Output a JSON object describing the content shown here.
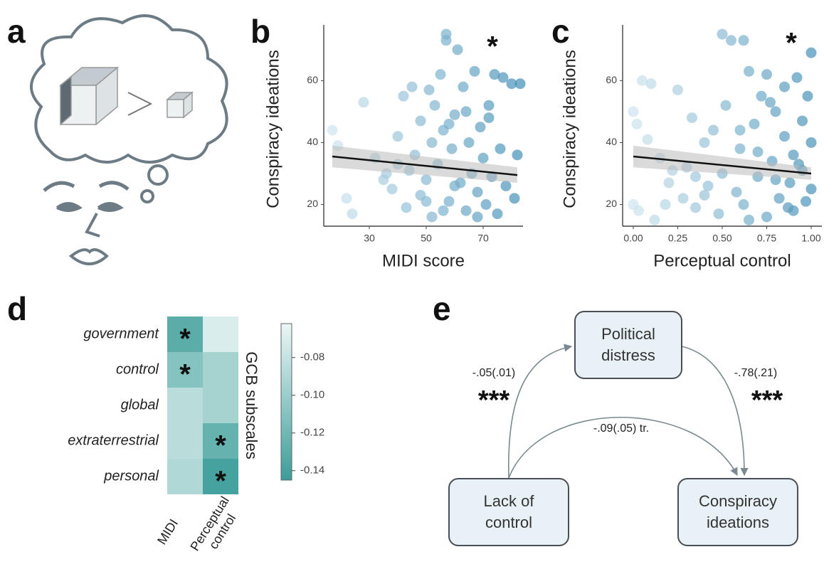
{
  "panel_a": {
    "label": "a"
  },
  "chart_data": [
    {
      "type": "scatter",
      "label": "b",
      "xlabel": "MIDI score",
      "ylabel": "Conspiracy ideations",
      "annotation": "*",
      "xlim": [
        14,
        84
      ],
      "ylim": [
        13,
        78
      ],
      "xticks": [
        30,
        50,
        70
      ],
      "yticks": [
        20,
        40,
        60
      ],
      "color_range": [
        "#d6e9f2",
        "#3f8db5"
      ],
      "x": [
        17,
        19,
        22,
        24,
        28,
        32,
        36,
        38,
        40,
        42,
        43,
        45,
        46,
        48,
        50,
        51,
        52,
        53,
        54,
        55,
        56,
        57,
        57,
        58,
        59,
        60,
        61,
        62,
        63,
        64,
        65,
        66,
        67,
        68,
        69,
        70,
        71,
        72,
        73,
        74,
        75,
        76,
        77,
        78,
        80,
        81,
        82,
        83,
        44,
        48,
        52,
        56,
        60,
        64,
        68,
        72,
        35,
        40,
        50,
        58
      ],
      "y": [
        44,
        39,
        22,
        17,
        53,
        35,
        30,
        25,
        42,
        55,
        19,
        58,
        36,
        47,
        28,
        57,
        16,
        52,
        33,
        62,
        44,
        75,
        73,
        21,
        38,
        49,
        70,
        27,
        58,
        18,
        40,
        30,
        63,
        24,
        45,
        35,
        20,
        52,
        29,
        62,
        17,
        38,
        61,
        26,
        59,
        22,
        36,
        59,
        31,
        23,
        40,
        18,
        26,
        50,
        16,
        48,
        28,
        33,
        21,
        46
      ],
      "fit": {
        "x": [
          17,
          82
        ],
        "y": [
          35.5,
          29.5
        ],
        "lower": [
          32,
          27
        ],
        "upper": [
          39,
          32
        ]
      }
    },
    {
      "type": "scatter",
      "label": "c",
      "xlabel": "Perceptual control",
      "ylabel": "Conspiracy ideations",
      "annotation": "*",
      "xlim": [
        -0.06,
        1.06
      ],
      "ylim": [
        13,
        78
      ],
      "xticks": [
        {
          "value": 0,
          "label": "0.00"
        },
        0.25,
        {
          "value": 0.5,
          "label": "0.50"
        },
        0.75,
        {
          "value": 1,
          "label": "1.00"
        }
      ],
      "yticks": [
        20,
        40,
        60
      ],
      "color_range": [
        "#d6e9f2",
        "#3f8db5"
      ],
      "x": [
        0,
        0.02,
        0.05,
        0.1,
        0.08,
        0,
        0.03,
        0.12,
        0.15,
        0.2,
        0.25,
        0.28,
        0.3,
        0.33,
        0.35,
        0.4,
        0.42,
        0.45,
        0.48,
        0.5,
        0.5,
        0.52,
        0.55,
        0.58,
        0.6,
        0.62,
        0.62,
        0.65,
        0.68,
        0.7,
        0.72,
        0.75,
        0.75,
        0.78,
        0.8,
        0.82,
        0.85,
        0.85,
        0.88,
        0.9,
        0.9,
        0.92,
        0.95,
        0.95,
        0.97,
        1,
        1,
        1,
        0.98,
        0.93,
        0.87,
        0.8,
        0.7,
        0.6,
        0.4,
        0.22,
        0.18,
        0.35,
        0.65,
        0.77
      ],
      "y": [
        50,
        46,
        60,
        59,
        41,
        20,
        18,
        15,
        35,
        27,
        57,
        22,
        32,
        48,
        19,
        40,
        26,
        44,
        17,
        75,
        30,
        52,
        73,
        24,
        38,
        73,
        20,
        63,
        46,
        29,
        55,
        62,
        16,
        34,
        50,
        22,
        42,
        58,
        27,
        36,
        18,
        61,
        31,
        47,
        21,
        69,
        40,
        25,
        55,
        33,
        19,
        28,
        37,
        44,
        23,
        31,
        20,
        29,
        15,
        53
      ],
      "fit": {
        "x": [
          0,
          1
        ],
        "y": [
          35.5,
          30
        ],
        "lower": [
          32,
          28
        ],
        "upper": [
          39,
          32
        ]
      }
    },
    {
      "type": "heatmap",
      "label": "d",
      "colorbar_label": "GCB subscales",
      "rows": [
        "government",
        "control",
        "global",
        "extraterrestrial",
        "personal"
      ],
      "columns": [
        "MIDI",
        "Perceptual control"
      ],
      "values": [
        [
          -0.13,
          -0.07
        ],
        [
          -0.11,
          -0.095
        ],
        [
          -0.085,
          -0.095
        ],
        [
          -0.085,
          -0.125
        ],
        [
          -0.09,
          -0.14
        ]
      ],
      "stars": [
        [
          "*",
          null
        ],
        [
          "*",
          null
        ],
        [
          null,
          null
        ],
        [
          null,
          "*"
        ],
        [
          null,
          "*"
        ]
      ],
      "clim": [
        -0.145,
        -0.062
      ],
      "colormap": [
        "#3c9d99",
        "#eaf6f5"
      ],
      "cticks": [
        -0.08,
        {
          "value": -0.1,
          "label": "-0.10"
        },
        -0.12,
        -0.14
      ]
    }
  ],
  "diagram": {
    "label": "e",
    "nodes": [
      {
        "label": "Political distress"
      },
      {
        "label": "Lack of control"
      },
      {
        "label": "Conspiracy ideations"
      }
    ],
    "edges": [
      {
        "coef": "-.05(.01)",
        "sig": "***"
      },
      {
        "coef": "-.78(.21)",
        "sig": "***"
      },
      {
        "coef": "-.09(.05) tr."
      }
    ]
  }
}
